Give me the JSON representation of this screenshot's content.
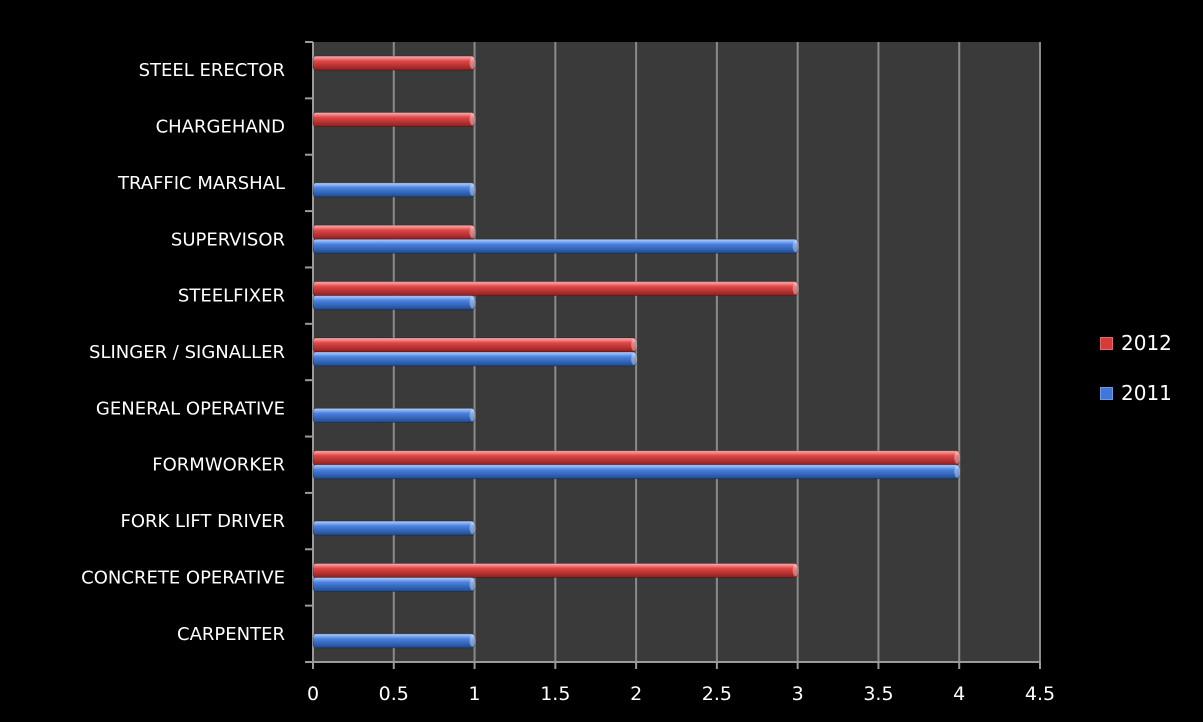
{
  "chart_data": {
    "type": "bar",
    "orientation": "horizontal",
    "categories": [
      "STEEL ERECTOR",
      "CHARGEHAND",
      "TRAFFIC MARSHAL",
      "SUPERVISOR",
      "STEELFIXER",
      "SLINGER / SIGNALLER",
      "GENERAL OPERATIVE",
      "FORMWORKER",
      "FORK LIFT DRIVER",
      "CONCRETE OPERATIVE",
      "CARPENTER"
    ],
    "series": [
      {
        "name": "2012",
        "color": "#d83a3a",
        "values": [
          1,
          1,
          0,
          1,
          3,
          2,
          0,
          4,
          0,
          3,
          0
        ]
      },
      {
        "name": "2011",
        "color": "#3f78d8",
        "values": [
          0,
          0,
          1,
          3,
          1,
          2,
          1,
          4,
          1,
          1,
          1
        ]
      }
    ],
    "x_ticks": [
      "0",
      "0.5",
      "1",
      "1.5",
      "2",
      "2.5",
      "3",
      "3.5",
      "4",
      "4.5"
    ],
    "xlim": [
      0,
      4.5
    ],
    "grid": true,
    "legend_position": "right",
    "plot_background": "#3a3a3a",
    "page_background": "#000000"
  }
}
